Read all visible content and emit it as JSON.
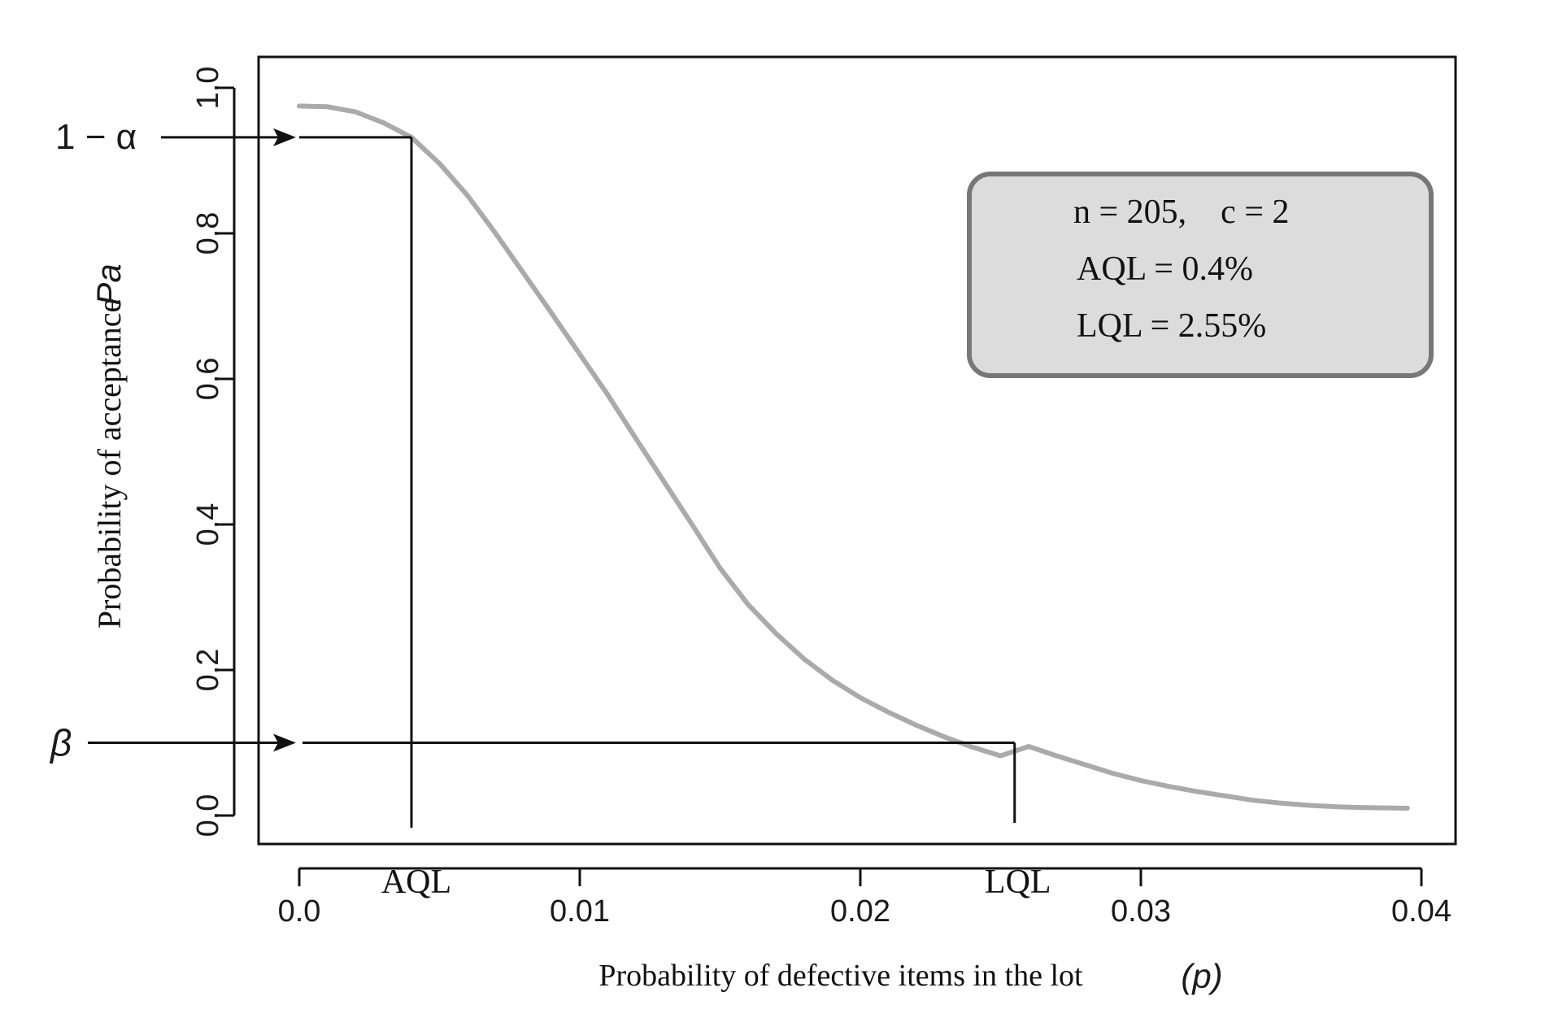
{
  "chart_data": {
    "type": "line",
    "x_axis": {
      "label": "Probability of defective items in the lot",
      "symbol": "(p)",
      "ticks": [
        0.0,
        0.01,
        0.02,
        0.03,
        0.04
      ],
      "tick_labels": [
        "0.0",
        "0.01",
        "0.02",
        "0.03",
        "0.04"
      ],
      "range": [
        0.0,
        0.04
      ]
    },
    "y_axis": {
      "label": "Probability of acceptance",
      "symbol": "Pa",
      "ticks": [
        0.0,
        0.2,
        0.4,
        0.6,
        0.8,
        1.0
      ],
      "tick_labels": [
        "0.0",
        "0.2",
        "0.4",
        "0.6",
        "0.8",
        "1.0"
      ],
      "range": [
        0.0,
        1.0
      ]
    },
    "series": [
      {
        "color": "#aaaaaa",
        "x": [
          0.0,
          0.001,
          0.002,
          0.003,
          0.004,
          0.005,
          0.006,
          0.007,
          0.008,
          0.009,
          0.01,
          0.011,
          0.012,
          0.013,
          0.014,
          0.015,
          0.016,
          0.017,
          0.018,
          0.019,
          0.02,
          0.021,
          0.022,
          0.023,
          0.024,
          0.025,
          0.0255,
          0.026,
          0.027,
          0.028,
          0.029,
          0.03,
          0.031,
          0.032,
          0.033,
          0.034,
          0.035,
          0.036,
          0.037,
          0.038,
          0.0395
        ],
        "y": [
          0.975,
          0.974,
          0.967,
          0.952,
          0.932,
          0.896,
          0.852,
          0.8,
          0.745,
          0.69,
          0.634,
          0.578,
          0.518,
          0.459,
          0.4,
          0.34,
          0.29,
          0.25,
          0.215,
          0.186,
          0.162,
          0.142,
          0.124,
          0.108,
          0.094,
          0.082,
          0.1,
          0.095,
          0.082,
          0.07,
          0.058,
          0.048,
          0.04,
          0.033,
          0.027,
          0.021,
          0.017,
          0.014,
          0.012,
          0.011,
          0.01
        ]
      }
    ],
    "markers": {
      "one_minus_alpha": {
        "label": "1 − α",
        "y": 0.932
      },
      "beta": {
        "label": "β",
        "y": 0.1
      },
      "aql": {
        "label": "AQL",
        "x": 0.004
      },
      "lql": {
        "label": "LQL",
        "x": 0.0255
      }
    },
    "legend_box": {
      "line1": "n = 205,    c = 2",
      "line2": "AQL = 0.4%",
      "line3": "LQL = 2.55%",
      "placement": "top-right",
      "fill": "#dcdcdc",
      "border": "#777777"
    },
    "grid": false
  }
}
